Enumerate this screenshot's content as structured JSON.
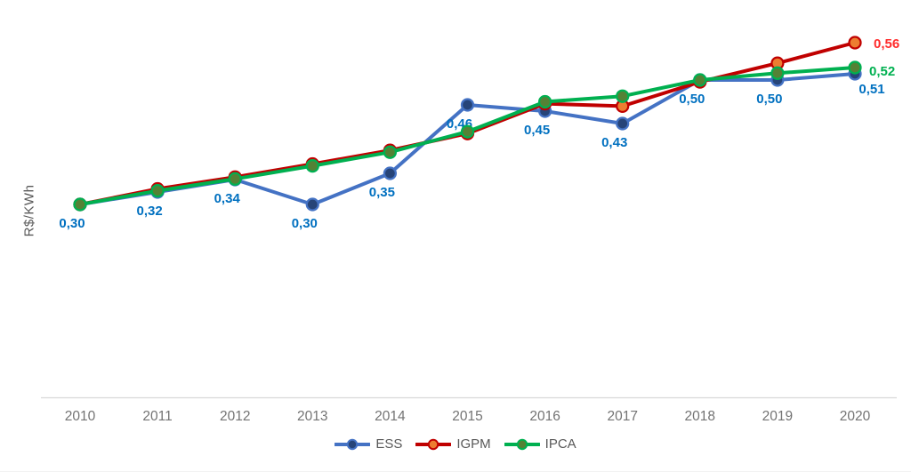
{
  "chart_data": {
    "type": "line",
    "title": "",
    "xlabel": "",
    "ylabel": "R$/KWh",
    "categories": [
      "2010",
      "2011",
      "2012",
      "2013",
      "2014",
      "2015",
      "2016",
      "2017",
      "2018",
      "2019",
      "2020"
    ],
    "series": [
      {
        "name": "ESS",
        "values": [
          0.3,
          0.32,
          0.34,
          0.3,
          0.35,
          0.46,
          0.45,
          0.43,
          0.5,
          0.5,
          0.51
        ],
        "labels": [
          "0,30",
          "0,32",
          "0,34",
          "0,30",
          "0,35",
          "0,46",
          "0,45",
          "0,43",
          "0,50",
          "0,50",
          "0,51"
        ],
        "label_position": "below",
        "line_color": "#4472C4",
        "marker_color": "#264478",
        "label_color": "#0070C0"
      },
      {
        "name": "IGPM",
        "values": [
          0.3,
          0.325,
          0.344,
          0.365,
          0.387,
          0.414,
          0.462,
          0.458,
          0.497,
          0.527,
          0.56
        ],
        "labels": [
          null,
          null,
          null,
          null,
          null,
          null,
          null,
          null,
          null,
          null,
          "0,56"
        ],
        "label_position": "right",
        "line_color": "#C00000",
        "marker_color": "#ED7D31",
        "label_color": "#FF2B2B"
      },
      {
        "name": "IPCA",
        "values": [
          0.3,
          0.322,
          0.341,
          0.362,
          0.384,
          0.417,
          0.465,
          0.474,
          0.5,
          0.511,
          0.52
        ],
        "labels": [
          null,
          null,
          null,
          null,
          null,
          null,
          null,
          null,
          null,
          null,
          "0,52"
        ],
        "label_position": "right",
        "line_color": "#00B050",
        "marker_color": "#548235",
        "label_color": "#00B050"
      }
    ],
    "ylim": [
      0.28,
      0.585
    ],
    "grid": false,
    "legend_position": "bottom",
    "axis_color": "#D9D9D9",
    "tick_color": "#737373",
    "legend_text_color": "#595959"
  }
}
